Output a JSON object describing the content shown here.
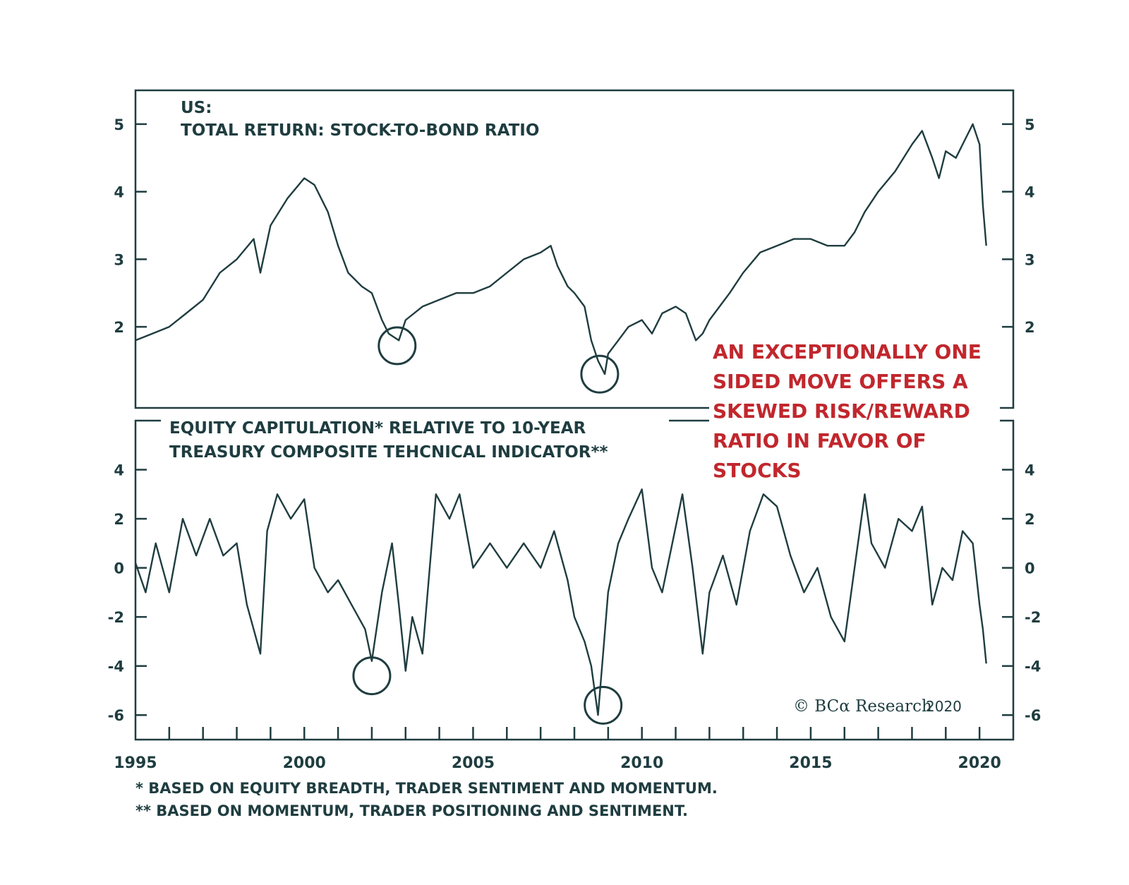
{
  "colors": {
    "line": "#1f3d40",
    "annotation": "#c1272d",
    "background": "#ffffff"
  },
  "chart_data": [
    {
      "type": "line",
      "title_line1": "US:",
      "title_line2": "TOTAL RETURN: STOCK-TO-BOND RATIO",
      "ylim": [
        0.8,
        5.5
      ],
      "yticks": [
        "2",
        "3",
        "4",
        "5"
      ],
      "ytick_values": [
        2,
        3,
        4,
        5
      ],
      "grid": false,
      "series": [
        {
          "x": [
            1995.0,
            1995.5,
            1996.0,
            1996.5,
            1997.0,
            1997.5,
            1998.0,
            1998.5,
            1998.7,
            1999.0,
            1999.5,
            2000.0,
            2000.3,
            2000.7,
            2001.0,
            2001.3,
            2001.7,
            2002.0,
            2002.3,
            2002.5,
            2002.8,
            2003.0,
            2003.5,
            2004.0,
            2004.5,
            2005.0,
            2005.5,
            2006.0,
            2006.5,
            2007.0,
            2007.3,
            2007.5,
            2007.8,
            2008.0,
            2008.3,
            2008.5,
            2008.7,
            2008.9,
            2009.0,
            2009.3,
            2009.6,
            2010.0,
            2010.3,
            2010.6,
            2011.0,
            2011.3,
            2011.6,
            2011.8,
            2012.0,
            2012.3,
            2012.6,
            2013.0,
            2013.5,
            2014.0,
            2014.5,
            2015.0,
            2015.5,
            2016.0,
            2016.3,
            2016.6,
            2017.0,
            2017.5,
            2018.0,
            2018.3,
            2018.6,
            2018.8,
            2019.0,
            2019.3,
            2019.6,
            2019.8,
            2020.0,
            2020.1,
            2020.2
          ],
          "values": [
            1.8,
            1.9,
            2.0,
            2.2,
            2.4,
            2.8,
            3.0,
            3.3,
            2.8,
            3.5,
            3.9,
            4.2,
            4.1,
            3.7,
            3.2,
            2.8,
            2.6,
            2.5,
            2.1,
            1.9,
            1.8,
            2.1,
            2.3,
            2.4,
            2.5,
            2.5,
            2.6,
            2.8,
            3.0,
            3.1,
            3.2,
            2.9,
            2.6,
            2.5,
            2.3,
            1.8,
            1.5,
            1.3,
            1.6,
            1.8,
            2.0,
            2.1,
            1.9,
            2.2,
            2.3,
            2.2,
            1.8,
            1.9,
            2.1,
            2.3,
            2.5,
            2.8,
            3.1,
            3.2,
            3.3,
            3.3,
            3.2,
            3.2,
            3.4,
            3.7,
            4.0,
            4.3,
            4.7,
            4.9,
            4.5,
            4.2,
            4.6,
            4.5,
            4.8,
            5.0,
            4.7,
            3.8,
            3.2
          ]
        }
      ],
      "circled_points": [
        {
          "x": 2002.75,
          "y": 1.72
        },
        {
          "x": 2008.75,
          "y": 1.3
        }
      ]
    },
    {
      "type": "line",
      "title_line1": "EQUITY CAPITULATION* RELATIVE TO 10-YEAR",
      "title_line2": "TREASURY COMPOSITE TEHCNICAL INDICATOR**",
      "ylim": [
        -7,
        6
      ],
      "yticks": [
        "4",
        "2",
        "0",
        "-2",
        "-4",
        "-6"
      ],
      "ytick_values": [
        4,
        2,
        0,
        -2,
        -4,
        -6
      ],
      "grid": false,
      "series": [
        {
          "x": [
            1995.0,
            1995.3,
            1995.6,
            1996.0,
            1996.4,
            1996.8,
            1997.2,
            1997.6,
            1998.0,
            1998.3,
            1998.7,
            1998.9,
            1999.2,
            1999.6,
            2000.0,
            2000.3,
            2000.7,
            2001.0,
            2001.4,
            2001.8,
            2002.0,
            2002.3,
            2002.6,
            2002.8,
            2003.0,
            2003.2,
            2003.5,
            2003.9,
            2004.3,
            2004.6,
            2005.0,
            2005.5,
            2006.0,
            2006.5,
            2007.0,
            2007.4,
            2007.8,
            2008.0,
            2008.3,
            2008.5,
            2008.7,
            2008.85,
            2009.0,
            2009.3,
            2009.6,
            2010.0,
            2010.3,
            2010.6,
            2010.9,
            2011.2,
            2011.5,
            2011.8,
            2012.0,
            2012.4,
            2012.8,
            2013.2,
            2013.6,
            2014.0,
            2014.4,
            2014.8,
            2015.2,
            2015.6,
            2016.0,
            2016.3,
            2016.6,
            2016.8,
            2017.2,
            2017.6,
            2018.0,
            2018.3,
            2018.6,
            2018.9,
            2019.2,
            2019.5,
            2019.8,
            2020.0,
            2020.1,
            2020.2
          ],
          "values": [
            0.2,
            -1.0,
            1.0,
            -1.0,
            2.0,
            0.5,
            2.0,
            0.5,
            1.0,
            -1.5,
            -3.5,
            1.5,
            3.0,
            2.0,
            2.8,
            0.0,
            -1.0,
            -0.5,
            -1.5,
            -2.5,
            -3.8,
            -1.0,
            1.0,
            -1.5,
            -4.2,
            -2.0,
            -3.5,
            3.0,
            2.0,
            3.0,
            0.0,
            1.0,
            0.0,
            1.0,
            0.0,
            1.5,
            -0.5,
            -2.0,
            -3.0,
            -4.0,
            -6.0,
            -3.5,
            -1.0,
            1.0,
            2.0,
            3.2,
            0.0,
            -1.0,
            1.0,
            3.0,
            0.0,
            -3.5,
            -1.0,
            0.5,
            -1.5,
            1.5,
            3.0,
            2.5,
            0.5,
            -1.0,
            0.0,
            -2.0,
            -3.0,
            0.0,
            3.0,
            1.0,
            0.0,
            2.0,
            1.5,
            2.5,
            -1.5,
            0.0,
            -0.5,
            1.5,
            1.0,
            -1.5,
            -2.5,
            -3.9
          ]
        }
      ],
      "circled_points": [
        {
          "x": 2002.0,
          "y": -4.4
        },
        {
          "x": 2008.85,
          "y": -5.6
        }
      ]
    }
  ],
  "x_axis": {
    "ticks": [
      "1995",
      "2000",
      "2005",
      "2010",
      "2015",
      "2020"
    ],
    "tick_values": [
      1995,
      2000,
      2005,
      2010,
      2015,
      2020
    ],
    "xlim": [
      1995,
      2021
    ]
  },
  "annotation": {
    "line1": "AN EXCEPTIONALLY ONE",
    "line2": "SIDED MOVE OFFERS A",
    "line3": "SKEWED RISK/REWARD",
    "line4": "RATIO IN FAVOR OF",
    "line5": "STOCKS"
  },
  "credit": {
    "text": "© BCα Research",
    "year": "2020"
  },
  "footnotes": {
    "note1": "*  BASED ON EQUITY BREADTH, TRADER SENTIMENT AND MOMENTUM.",
    "note2": "** BASED ON MOMENTUM, TRADER POSITIONING AND SENTIMENT."
  }
}
